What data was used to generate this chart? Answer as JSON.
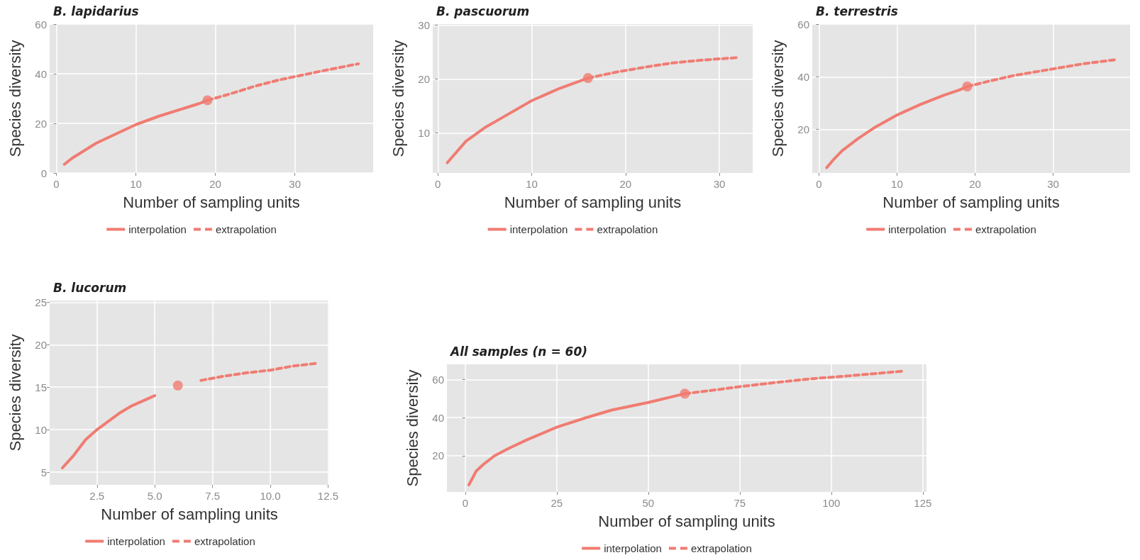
{
  "chart_data": [
    {
      "type": "line",
      "title": "B. lapidarius",
      "xlabel": "Number of sampling units",
      "ylabel": "Species diversity",
      "xlim": [
        -0.85,
        39.85
      ],
      "xticks": [
        0,
        10,
        20,
        30
      ],
      "ylim": [
        0,
        60
      ],
      "yticks": [
        0,
        20,
        40,
        60
      ],
      "grid": true,
      "legend": "bottom",
      "series": [
        {
          "name": "interpolation",
          "color": "#f07c72",
          "line_style": "solid",
          "marker": "none",
          "x": [
            1,
            2,
            3,
            5,
            7,
            10,
            13,
            16,
            18,
            19
          ],
          "values": [
            3.5,
            6,
            8,
            12,
            15,
            19.5,
            23,
            26,
            28,
            29.3
          ]
        },
        {
          "name": "extrapolation",
          "color": "#f07c72",
          "line_style": "dashed",
          "marker": "none",
          "x": [
            19,
            22,
            25,
            28,
            31,
            34,
            38
          ],
          "values": [
            29.3,
            32,
            35,
            37.5,
            39.5,
            41.5,
            44
          ]
        },
        {
          "type": "scatter",
          "color": "#f07c72",
          "marker": "circle",
          "x": [
            19
          ],
          "values": [
            29.3
          ]
        }
      ]
    },
    {
      "type": "line",
      "title": "B. pascuorum",
      "xlabel": "Number of sampling units",
      "ylabel": "Species diversity",
      "xlim": [
        -0.55,
        33.55
      ],
      "xticks": [
        0,
        10,
        20,
        30
      ],
      "ylim": [
        2.6,
        30.2
      ],
      "yticks": [
        10,
        20,
        30
      ],
      "grid": true,
      "legend": "bottom",
      "series": [
        {
          "name": "interpolation",
          "color": "#f07c72",
          "line_style": "solid",
          "marker": "none",
          "x": [
            1,
            3,
            5,
            7,
            10,
            13,
            16
          ],
          "values": [
            4.5,
            8.5,
            11,
            13,
            16,
            18.3,
            20.2
          ]
        },
        {
          "name": "extrapolation",
          "color": "#f07c72",
          "line_style": "dashed",
          "marker": "none",
          "x": [
            16,
            19,
            22,
            25,
            28,
            32
          ],
          "values": [
            20.2,
            21.3,
            22.2,
            23,
            23.5,
            24
          ]
        },
        {
          "type": "scatter",
          "color": "#f07c72",
          "marker": "circle",
          "x": [
            16
          ],
          "values": [
            20.2
          ]
        }
      ]
    },
    {
      "type": "line",
      "title": "B. terrestris",
      "xlabel": "Number of sampling units",
      "ylabel": "Species diversity",
      "xlim": [
        -0.85,
        39.85
      ],
      "xticks": [
        0,
        10,
        20,
        30
      ],
      "ylim": [
        3.5,
        60
      ],
      "yticks": [
        20,
        40,
        60
      ],
      "grid": true,
      "legend": "bottom",
      "series": [
        {
          "name": "interpolation",
          "color": "#f07c72",
          "line_style": "solid",
          "marker": "none",
          "x": [
            1,
            2,
            3,
            5,
            7,
            10,
            13,
            16,
            18,
            19
          ],
          "values": [
            5.5,
            9,
            12,
            16.5,
            20.5,
            25.5,
            29.5,
            33,
            35,
            36.3
          ]
        },
        {
          "name": "extrapolation",
          "color": "#f07c72",
          "line_style": "dashed",
          "marker": "none",
          "x": [
            19,
            22,
            25,
            28,
            31,
            34,
            38
          ],
          "values": [
            36.3,
            38.5,
            40.5,
            42,
            43.5,
            45,
            46.5
          ]
        },
        {
          "type": "scatter",
          "color": "#f07c72",
          "marker": "circle",
          "x": [
            19
          ],
          "values": [
            36.3
          ]
        }
      ]
    },
    {
      "type": "line",
      "title": "B. lucorum",
      "xlabel": "Number of sampling units",
      "ylabel": "Species diversity",
      "xlim": [
        0.45,
        12.55
      ],
      "xticks": [
        2.5,
        {
          "value": 5,
          "label": "5.0"
        },
        7.5,
        {
          "value": 10,
          "label": "10.0"
        },
        12.5
      ],
      "ylim": [
        3.5,
        25.2
      ],
      "yticks": [
        5,
        10,
        15,
        20,
        25
      ],
      "grid": true,
      "legend": "bottom",
      "series": [
        {
          "name": "interpolation",
          "color": "#f07c72",
          "line_style": "solid",
          "marker": "none",
          "x": [
            1,
            1.5,
            2,
            2.5,
            3,
            3.5,
            4,
            5
          ],
          "values": [
            5.5,
            7,
            8.8,
            10,
            11,
            12,
            12.8,
            14
          ]
        },
        {
          "name": "extrapolation",
          "color": "#f07c72",
          "line_style": "dashed",
          "marker": "none",
          "x": [
            7,
            8,
            9,
            10,
            11,
            12
          ],
          "values": [
            15.8,
            16.3,
            16.7,
            17,
            17.5,
            17.8
          ]
        },
        {
          "type": "scatter",
          "color": "#f07c72",
          "marker": "circle",
          "x": [
            6
          ],
          "values": [
            15.2
          ]
        }
      ]
    },
    {
      "type": "line",
      "title": "All samples (n = 60)",
      "xlabel": "Number of sampling units",
      "ylabel": "Species diversity",
      "xlim": [
        -5,
        126
      ],
      "xticks": [
        0,
        25,
        50,
        75,
        100,
        125
      ],
      "ylim": [
        1,
        68
      ],
      "yticks": [
        20,
        40,
        60
      ],
      "grid": true,
      "legend": "bottom",
      "series": [
        {
          "name": "interpolation",
          "color": "#f07c72",
          "line_style": "solid",
          "marker": "none",
          "x": [
            1,
            3,
            5,
            8,
            12,
            17,
            25,
            33,
            40,
            50,
            60
          ],
          "values": [
            4.7,
            12,
            15.5,
            20,
            24,
            28.5,
            35,
            40,
            44,
            48,
            52.6
          ]
        },
        {
          "name": "extrapolation",
          "color": "#f07c72",
          "line_style": "dashed",
          "marker": "none",
          "x": [
            60,
            70,
            75,
            85,
            95,
            105,
            120
          ],
          "values": [
            52.6,
            55,
            56.3,
            58.5,
            60.5,
            62,
            64.5
          ]
        },
        {
          "type": "scatter",
          "color": "#f07c72",
          "marker": "circle",
          "x": [
            60
          ],
          "values": [
            52.6
          ]
        }
      ]
    }
  ]
}
